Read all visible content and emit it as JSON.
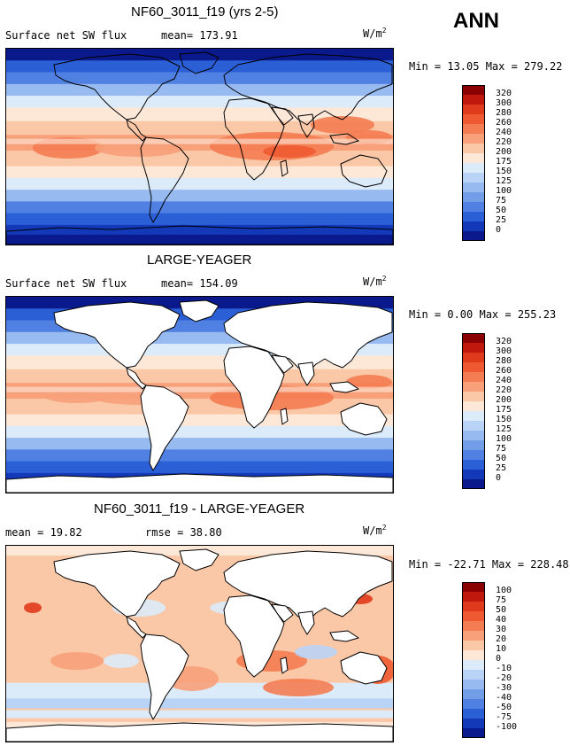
{
  "season": "ANN",
  "panels": [
    {
      "title": "NF60_3011_f19 (yrs 2-5)",
      "left_text": "Surface net SW flux",
      "mid_text": "mean= 173.91",
      "units_base": "W/m",
      "units_exp": "2",
      "minmax": "Min =   13.05 Max = 279.22",
      "levels": [
        "320",
        "300",
        "280",
        "260",
        "240",
        "220",
        "200",
        "175",
        "150",
        "125",
        "100",
        "75",
        "50",
        "25",
        "0"
      ],
      "colors": [
        "#8b0000",
        "#c0180c",
        "#e03a1c",
        "#ef5a32",
        "#f47c52",
        "#f7a07a",
        "#fac7a7",
        "#fde8d8",
        "#dcebfa",
        "#b9d3f6",
        "#97bbf0",
        "#729ee8",
        "#4f80e2",
        "#2b5fd6",
        "#1338b8",
        "#0a1a8c"
      ],
      "land_masked": false
    },
    {
      "title": "LARGE-YEAGER",
      "left_text": "Surface net SW flux",
      "mid_text": "mean= 154.09",
      "units_base": "W/m",
      "units_exp": "2",
      "minmax": "Min =    0.00 Max = 255.23",
      "levels": [
        "320",
        "300",
        "280",
        "260",
        "240",
        "220",
        "200",
        "175",
        "150",
        "125",
        "100",
        "75",
        "50",
        "25",
        "0"
      ],
      "colors": [
        "#8b0000",
        "#c0180c",
        "#e03a1c",
        "#ef5a32",
        "#f47c52",
        "#f7a07a",
        "#fac7a7",
        "#fde8d8",
        "#dcebfa",
        "#b9d3f6",
        "#97bbf0",
        "#729ee8",
        "#4f80e2",
        "#2b5fd6",
        "#1338b8",
        "#0a1a8c"
      ],
      "land_masked": true
    },
    {
      "title": "NF60_3011_f19 - LARGE-YEAGER",
      "left_text": "mean =  19.82",
      "mid_text": "rmse =  38.80",
      "units_base": "W/m",
      "units_exp": "2",
      "minmax": "Min = -22.71 Max = 228.48",
      "levels": [
        "100",
        "75",
        "50",
        "40",
        "30",
        "20",
        "10",
        "0",
        "-10",
        "-20",
        "-30",
        "-40",
        "-50",
        "-75",
        "-100"
      ],
      "colors": [
        "#8b0000",
        "#c0180c",
        "#e03a1c",
        "#ef5a32",
        "#f47c52",
        "#f7a07a",
        "#fac7a7",
        "#fde8d8",
        "#dcebfa",
        "#b9d3f6",
        "#97bbf0",
        "#729ee8",
        "#4f80e2",
        "#2b5fd6",
        "#1338b8",
        "#0a1a8c"
      ],
      "land_masked": true
    }
  ]
}
